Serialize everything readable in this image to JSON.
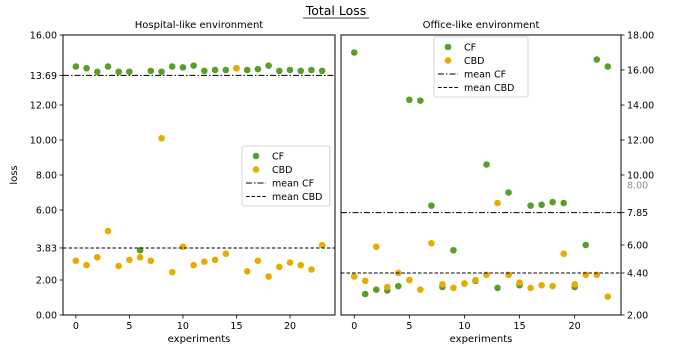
{
  "figure": {
    "suptitle": "Total Loss",
    "colors": {
      "cf": "#5a9e2a",
      "cbd": "#e6ad00",
      "axis": "#000000",
      "ghost_tick": "#999999"
    }
  },
  "chart_data": [
    {
      "type": "scatter",
      "title": "Hospital-like environment",
      "xlabel": "experiments",
      "ylabel": "loss",
      "xlim": [
        -1.2,
        24.2
      ],
      "ylim": [
        0,
        16
      ],
      "xticks": [
        0,
        5,
        10,
        15,
        20
      ],
      "yticks": [
        0,
        2,
        3.83,
        6,
        8,
        10,
        12,
        13.69,
        16
      ],
      "ytick_labels": [
        "0.00",
        "2.00",
        "3.83",
        "6.00",
        "8.00",
        "10.00",
        "12.00",
        "13.69",
        "16.00"
      ],
      "grid": false,
      "legend_position": "center-right",
      "series": [
        {
          "name": "CF",
          "kind": "points",
          "color": "#5a9e2a",
          "x": [
            0,
            1,
            2,
            3,
            4,
            5,
            7,
            8,
            9,
            10,
            11,
            12,
            13,
            14,
            15,
            16,
            17,
            18,
            19,
            20,
            21,
            22,
            23
          ],
          "y": [
            14.2,
            14.1,
            13.9,
            14.2,
            13.9,
            13.9,
            13.95,
            13.9,
            14.2,
            14.15,
            14.25,
            13.95,
            14.0,
            14.0,
            14.1,
            14.0,
            14.05,
            14.25,
            13.95,
            14.0,
            13.95,
            14.0,
            13.95
          ]
        },
        {
          "name": "CBD",
          "kind": "points",
          "color": "#e6ad00",
          "x": [
            0,
            1,
            2,
            3,
            4,
            5,
            6,
            7,
            8,
            9,
            10,
            11,
            12,
            13,
            14,
            15,
            16,
            17,
            18,
            19,
            20,
            21,
            22,
            23
          ],
          "y": [
            3.1,
            2.85,
            3.3,
            4.8,
            2.8,
            3.15,
            3.3,
            3.1,
            10.1,
            2.45,
            3.9,
            2.85,
            3.05,
            3.15,
            3.5,
            14.1,
            2.5,
            3.1,
            2.2,
            2.75,
            3.0,
            2.85,
            2.6,
            4.0
          ]
        },
        {
          "name": "",
          "kind": "points",
          "color": "#5a9e2a",
          "x": [
            6
          ],
          "y": [
            3.7
          ]
        },
        {
          "name": "mean CF",
          "kind": "hline",
          "style": "dashdot",
          "y": 13.69
        },
        {
          "name": "mean CBD",
          "kind": "hline",
          "style": "dashed",
          "y": 3.83
        }
      ]
    },
    {
      "type": "scatter",
      "title": "Office-like environment",
      "xlabel": "experiments",
      "ylabel": "",
      "xlim": [
        -1.2,
        24.2
      ],
      "ylim": [
        2.0,
        18.0
      ],
      "xticks": [
        0,
        5,
        10,
        15,
        20
      ],
      "yticks": [
        2.0,
        4.4,
        6.0,
        7.85,
        10.0,
        12.0,
        14.0,
        16.0,
        18.0
      ],
      "ytick_labels": [
        "2.00",
        "4.40",
        "6.00",
        "7.85",
        "10.00",
        "12.00",
        "14.00",
        "16.00",
        "18.00"
      ],
      "ghost_tick_labels": [
        "8.00"
      ],
      "grid": false,
      "legend_position": "top-center",
      "series": [
        {
          "name": "CF",
          "kind": "points",
          "color": "#5a9e2a",
          "x": [
            0,
            1,
            2,
            3,
            4,
            5,
            6,
            7,
            8,
            9,
            10,
            11,
            12,
            13,
            14,
            15,
            16,
            17,
            18,
            19,
            20,
            21,
            22,
            23
          ],
          "y": [
            17.0,
            3.2,
            3.45,
            3.4,
            3.65,
            14.3,
            14.25,
            8.25,
            3.6,
            5.7,
            3.8,
            3.95,
            10.6,
            3.55,
            9.0,
            3.7,
            8.25,
            8.3,
            8.45,
            8.4,
            3.6,
            6.0,
            16.6,
            16.2
          ]
        },
        {
          "name": "CBD",
          "kind": "points",
          "color": "#e6ad00",
          "x": [
            0,
            1,
            2,
            3,
            4,
            5,
            6,
            7,
            8,
            9,
            10,
            11,
            12,
            13,
            14,
            15,
            16,
            17,
            18,
            19,
            20,
            21,
            22,
            23
          ],
          "y": [
            4.2,
            3.95,
            5.9,
            3.6,
            4.4,
            4.0,
            3.45,
            6.1,
            3.75,
            3.55,
            3.8,
            4.0,
            4.3,
            8.4,
            4.3,
            3.85,
            3.55,
            3.7,
            3.65,
            5.5,
            3.75,
            4.3,
            4.3,
            3.05
          ]
        },
        {
          "name": "mean CF",
          "kind": "hline",
          "style": "dashdot",
          "y": 7.85
        },
        {
          "name": "mean CBD",
          "kind": "hline",
          "style": "dashed",
          "y": 4.4
        }
      ]
    }
  ]
}
